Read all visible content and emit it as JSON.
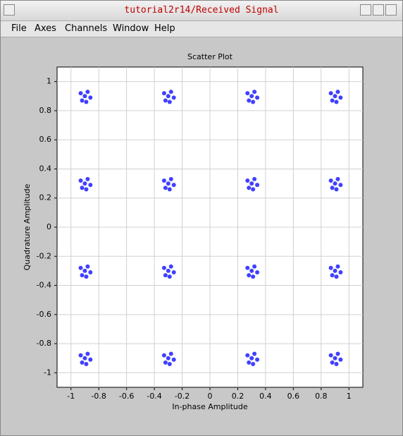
{
  "window": {
    "title": "tutorial2r14/Received Signal",
    "menu": [
      "File",
      "Axes",
      "Channels",
      "Window",
      "Help"
    ]
  },
  "chart_data": {
    "type": "scatter",
    "title": "Scatter Plot",
    "x_label": "In-phase Amplitude",
    "y_label": "Quadrature Amplitude",
    "xlim": [
      -1.1,
      1.1
    ],
    "ylim": [
      -1.1,
      1.1
    ],
    "xticks": [
      -1,
      -0.8,
      -0.6,
      -0.4,
      -0.2,
      0,
      0.2,
      0.4,
      0.6,
      0.8,
      1
    ],
    "yticks": [
      -1,
      -0.8,
      -0.6,
      -0.4,
      -0.2,
      0,
      0.2,
      0.4,
      0.6,
      0.8,
      1
    ],
    "grid": true,
    "series": [
      {
        "color": "#0000ff",
        "x": [
          -0.93,
          -0.88,
          -0.86,
          -0.92,
          -0.9,
          -0.89,
          -0.33,
          -0.28,
          -0.26,
          -0.32,
          -0.3,
          -0.29,
          0.27,
          0.32,
          0.34,
          0.28,
          0.3,
          0.31,
          0.87,
          0.92,
          0.94,
          0.88,
          0.9,
          0.91,
          -0.93,
          -0.88,
          -0.86,
          -0.92,
          -0.9,
          -0.89,
          -0.33,
          -0.28,
          -0.26,
          -0.32,
          -0.3,
          -0.29,
          0.27,
          0.32,
          0.34,
          0.28,
          0.3,
          0.31,
          0.87,
          0.92,
          0.94,
          0.88,
          0.9,
          0.91,
          -0.93,
          -0.88,
          -0.86,
          -0.92,
          -0.9,
          -0.89,
          -0.33,
          -0.28,
          -0.26,
          -0.32,
          -0.3,
          -0.29,
          0.27,
          0.32,
          0.34,
          0.28,
          0.3,
          0.31,
          0.87,
          0.92,
          0.94,
          0.88,
          0.9,
          0.91,
          -0.93,
          -0.88,
          -0.86,
          -0.92,
          -0.9,
          -0.89,
          -0.33,
          -0.28,
          -0.26,
          -0.32,
          -0.3,
          -0.29,
          0.27,
          0.32,
          0.34,
          0.28,
          0.3,
          0.31,
          0.87,
          0.92,
          0.94,
          0.88,
          0.9,
          0.91
        ],
        "values": [
          0.92,
          0.93,
          0.89,
          0.87,
          0.9,
          0.86,
          0.92,
          0.93,
          0.89,
          0.87,
          0.9,
          0.86,
          0.92,
          0.93,
          0.89,
          0.87,
          0.9,
          0.86,
          0.92,
          0.93,
          0.89,
          0.87,
          0.9,
          0.86,
          0.32,
          0.33,
          0.29,
          0.27,
          0.3,
          0.26,
          0.32,
          0.33,
          0.29,
          0.27,
          0.3,
          0.26,
          0.32,
          0.33,
          0.29,
          0.27,
          0.3,
          0.26,
          0.32,
          0.33,
          0.29,
          0.27,
          0.3,
          0.26,
          -0.28,
          -0.27,
          -0.31,
          -0.33,
          -0.3,
          -0.34,
          -0.28,
          -0.27,
          -0.31,
          -0.33,
          -0.3,
          -0.34,
          -0.28,
          -0.27,
          -0.31,
          -0.33,
          -0.3,
          -0.34,
          -0.28,
          -0.27,
          -0.31,
          -0.33,
          -0.3,
          -0.34,
          -0.88,
          -0.87,
          -0.91,
          -0.93,
          -0.9,
          -0.94,
          -0.88,
          -0.87,
          -0.91,
          -0.93,
          -0.9,
          -0.94,
          -0.88,
          -0.87,
          -0.91,
          -0.93,
          -0.9,
          -0.94,
          -0.88,
          -0.87,
          -0.91,
          -0.93,
          -0.9,
          -0.94
        ]
      }
    ]
  }
}
